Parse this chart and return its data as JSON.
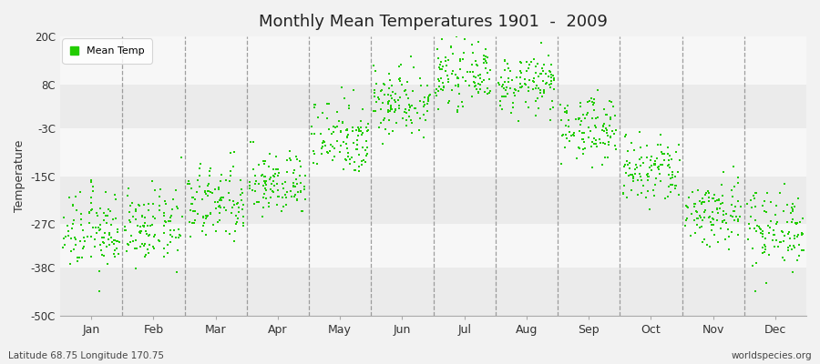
{
  "title": "Monthly Mean Temperatures 1901  -  2009",
  "ylabel": "Temperature",
  "subtitle_left": "Latitude 68.75 Longitude 170.75",
  "subtitle_right": "worldspecies.org",
  "ylim": [
    -50,
    20
  ],
  "yticks": [
    -50,
    -38,
    -27,
    -15,
    -3,
    8,
    20
  ],
  "ytick_labels": [
    "-50C",
    "-38C",
    "-27C",
    "-15C",
    "-3C",
    "8C",
    "20C"
  ],
  "months": [
    "Jan",
    "Feb",
    "Mar",
    "Apr",
    "May",
    "Jun",
    "Jul",
    "Aug",
    "Sep",
    "Oct",
    "Nov",
    "Dec"
  ],
  "dot_color": "#22cc00",
  "bg_color": "#f2f2f2",
  "band_colors": [
    "#ebebeb",
    "#f7f7f7"
  ],
  "monthly_mean_temps": [
    -29,
    -28,
    -22,
    -17,
    -5,
    4,
    10,
    8,
    -3,
    -14,
    -24,
    -28
  ],
  "monthly_std": [
    5.0,
    4.5,
    5.0,
    4.0,
    5.0,
    4.5,
    3.5,
    3.5,
    4.0,
    4.5,
    4.5,
    5.0
  ],
  "n_years": 109
}
